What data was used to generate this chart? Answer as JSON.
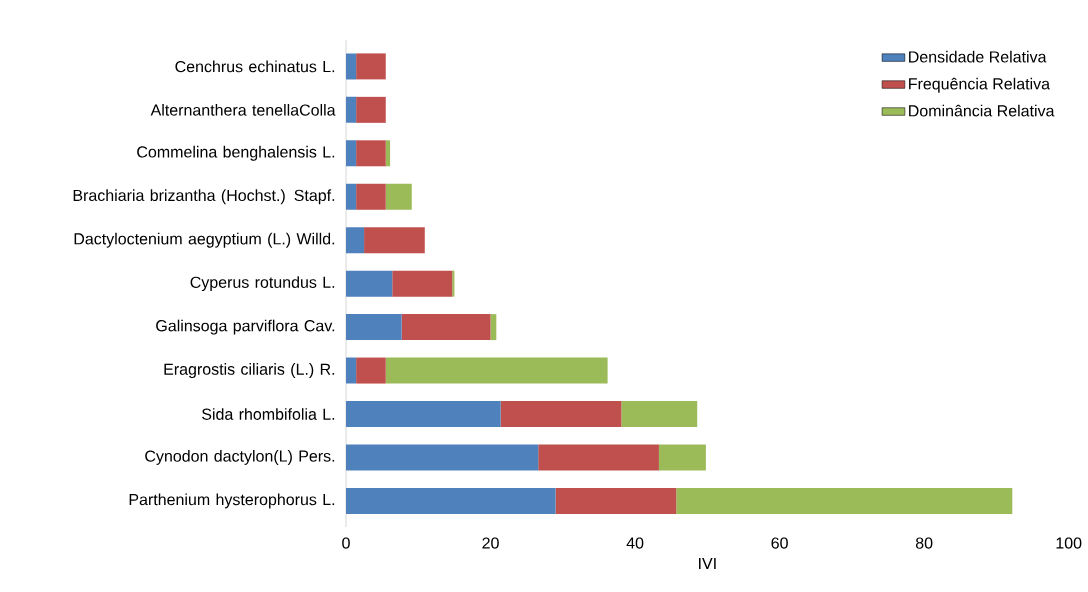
{
  "chart_data": {
    "type": "bar",
    "orientation": "horizontal",
    "stacked": true,
    "xlabel": "IVI",
    "categories": [
      "Cenchrus echinatus L.",
      "Alternanthera tenellaColla",
      "Commelina benghalensis L.",
      "Brachiaria brizantha (Hochst.) Stapf.",
      "Dactyloctenium aegyptium (L.) Willd.",
      "Cyperus rotundus L.",
      "Galinsoga parviflora Cav.",
      "Eragrostis ciliaris (L.) R.",
      "Sida rhombifolia L.",
      "Cynodon dactylon(L) Pers.",
      "Parthenium hysterophorus L."
    ],
    "series": [
      {
        "name": "Densidade Relativa",
        "color": "#4f81bd",
        "values": [
          1.4,
          1.4,
          1.4,
          1.4,
          2.5,
          6.4,
          7.7,
          1.4,
          21.4,
          26.6,
          29.0
        ]
      },
      {
        "name": "Frequência Relativa",
        "color": "#c0504d",
        "values": [
          4.1,
          4.1,
          4.1,
          4.1,
          8.4,
          8.3,
          12.3,
          4.1,
          16.7,
          16.7,
          16.7
        ]
      },
      {
        "name": "Dominância Relativa",
        "color": "#9bbb59",
        "values": [
          null,
          null,
          0.6,
          3.6,
          null,
          0.3,
          0.8,
          30.7,
          10.5,
          6.5,
          46.5
        ]
      }
    ],
    "xlim": [
      0,
      100
    ],
    "xticks": [
      0,
      20,
      40,
      60,
      80,
      100
    ],
    "grid": false,
    "legend": "top right"
  }
}
